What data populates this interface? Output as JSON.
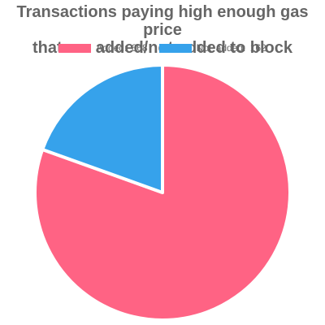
{
  "chart_data": {
    "type": "pie",
    "title": "Transactions paying high enough gas price\n that are added/not added to block",
    "slices": [
      {
        "label": "Added",
        "value": 668,
        "color": "#ff6384",
        "legend_text": "Added:  668"
      },
      {
        "label": "Not added",
        "value": 162,
        "color": "#36a2eb",
        "legend_text": "Not added:  162"
      }
    ],
    "legend_position": "top"
  }
}
